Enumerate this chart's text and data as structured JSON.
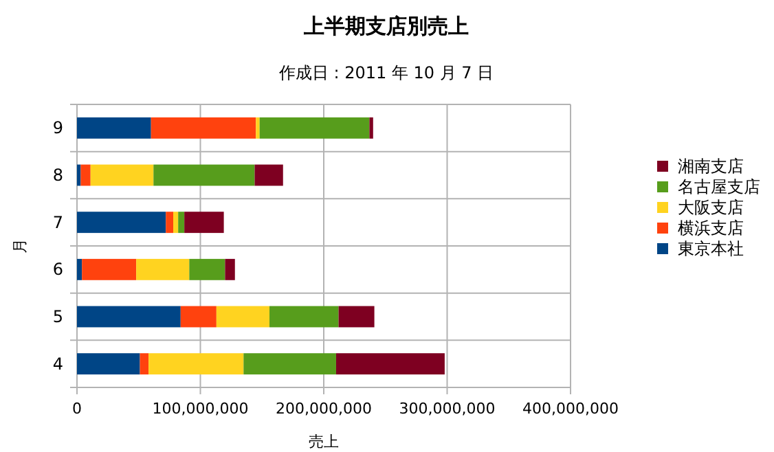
{
  "chart_data": {
    "type": "bar",
    "orientation": "horizontal",
    "stacked": true,
    "title": "上半期支店別売上",
    "subtitle": "作成日 : 2011 年 10 月 7 日",
    "xlabel": "売上",
    "ylabel": "月",
    "categories": [
      "9",
      "8",
      "7",
      "6",
      "5",
      "4"
    ],
    "series": [
      {
        "name": "東京本社",
        "color": "#004586",
        "values": [
          60000000,
          3000000,
          72000000,
          4000000,
          84000000,
          51000000
        ]
      },
      {
        "name": "横浜支店",
        "color": "#ff420e",
        "values": [
          85000000,
          8000000,
          6000000,
          44000000,
          29000000,
          7000000
        ]
      },
      {
        "name": "大阪支店",
        "color": "#ffd320",
        "values": [
          3000000,
          51000000,
          4000000,
          43000000,
          43000000,
          77000000
        ]
      },
      {
        "name": "名古屋支店",
        "color": "#579d1c",
        "values": [
          89000000,
          82000000,
          5000000,
          29000000,
          56000000,
          75000000
        ]
      },
      {
        "name": "湘南支店",
        "color": "#7e0021",
        "values": [
          3000000,
          23000000,
          32000000,
          8000000,
          29000000,
          88000000
        ]
      }
    ],
    "xlim": [
      0,
      400000000
    ],
    "xticks": [
      {
        "value": 0,
        "label": "0"
      },
      {
        "value": 100000000,
        "label": "100,000,000"
      },
      {
        "value": 200000000,
        "label": "200,000,000"
      },
      {
        "value": 300000000,
        "label": "300,000,000"
      },
      {
        "value": 400000000,
        "label": "400,000,000"
      }
    ],
    "grid": true,
    "legend": "right"
  }
}
